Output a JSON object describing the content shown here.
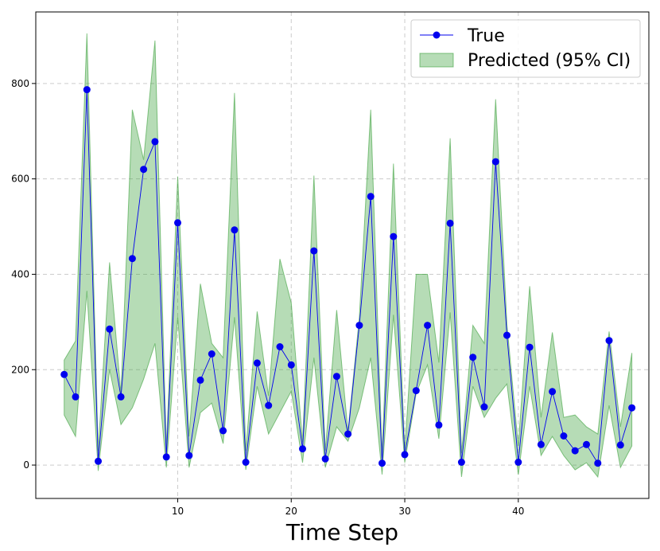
{
  "chart_data": {
    "type": "line",
    "title": "",
    "xlabel": "Time Step",
    "ylabel": "",
    "xlim": [
      -2.5,
      51.5
    ],
    "ylim": [
      -70,
      950
    ],
    "xticks": [
      10,
      20,
      30,
      40
    ],
    "yticks": [
      0,
      200,
      400,
      600,
      800
    ],
    "grid": true,
    "legend_position": "top-right",
    "colors": {
      "line": "#0000ee",
      "band_fill": "#2e9b2e",
      "band_edge": "#3aa03a",
      "grid": "#cccccc"
    },
    "series": [
      {
        "name": "True",
        "type": "line",
        "x": [
          0,
          1,
          2,
          3,
          4,
          5,
          6,
          7,
          8,
          9,
          10,
          11,
          12,
          13,
          14,
          15,
          16,
          17,
          18,
          19,
          20,
          21,
          22,
          23,
          24,
          25,
          26,
          27,
          28,
          29,
          30,
          31,
          32,
          33,
          34,
          35,
          36,
          37,
          38,
          39,
          40,
          41,
          42,
          43,
          44,
          45,
          46,
          47,
          48,
          49,
          50
        ],
        "values": [
          190,
          143,
          787,
          8,
          285,
          143,
          433,
          620,
          678,
          17,
          508,
          20,
          178,
          233,
          72,
          493,
          6,
          214,
          125,
          248,
          210,
          34,
          449,
          13,
          186,
          65,
          293,
          563,
          4,
          479,
          22,
          156,
          293,
          84,
          507,
          6,
          226,
          122,
          636,
          272,
          6,
          247,
          43,
          154,
          61,
          30,
          43,
          4,
          261,
          42,
          120
        ]
      },
      {
        "name": "Predicted (95% CI)",
        "type": "band",
        "x": [
          0,
          1,
          2,
          3,
          4,
          5,
          6,
          7,
          8,
          9,
          10,
          11,
          12,
          13,
          14,
          15,
          16,
          17,
          18,
          19,
          20,
          21,
          22,
          23,
          24,
          25,
          26,
          27,
          28,
          29,
          30,
          31,
          32,
          33,
          34,
          35,
          36,
          37,
          38,
          39,
          40,
          41,
          42,
          43,
          44,
          45,
          46,
          47,
          48,
          49,
          50
        ],
        "lower": [
          105,
          60,
          365,
          -12,
          200,
          85,
          120,
          180,
          255,
          -5,
          310,
          -5,
          110,
          130,
          45,
          310,
          -10,
          165,
          65,
          110,
          155,
          5,
          225,
          -5,
          80,
          50,
          120,
          225,
          -20,
          315,
          5,
          150,
          210,
          55,
          320,
          -25,
          165,
          100,
          140,
          170,
          -20,
          165,
          20,
          60,
          20,
          -10,
          5,
          -25,
          125,
          -5,
          40
        ],
        "upper": [
          220,
          260,
          905,
          30,
          425,
          150,
          745,
          640,
          890,
          35,
          605,
          60,
          380,
          255,
          225,
          780,
          30,
          322,
          145,
          432,
          340,
          48,
          607,
          30,
          325,
          70,
          310,
          745,
          20,
          632,
          30,
          400,
          400,
          215,
          685,
          25,
          293,
          255,
          767,
          295,
          40,
          375,
          100,
          278,
          100,
          105,
          80,
          65,
          280,
          80,
          235
        ]
      }
    ]
  }
}
